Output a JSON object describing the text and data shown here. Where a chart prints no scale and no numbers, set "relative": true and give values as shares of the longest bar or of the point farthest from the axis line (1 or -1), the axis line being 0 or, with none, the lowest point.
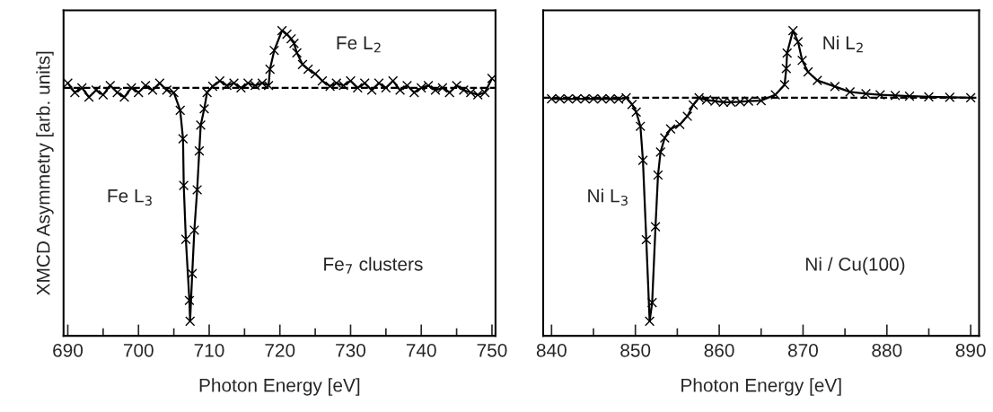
{
  "chart_data": [
    {
      "type": "line",
      "relative": true,
      "xlabel": "Photon Energy [eV]",
      "ylabel": "XMCD Asymmetry [arb. units]",
      "tick_labels": "x",
      "marker": "cross",
      "line_style": "solid",
      "grid": false,
      "legend": false,
      "xlim": [
        689.4,
        750.5
      ],
      "xticks": [
        690,
        {
          "value": 695,
          "label": null
        },
        700,
        {
          "value": 705,
          "label": null
        },
        710,
        {
          "value": 715,
          "label": null
        },
        720,
        {
          "value": 725,
          "label": null
        },
        730,
        {
          "value": 735,
          "label": null
        },
        740,
        {
          "value": 745,
          "label": null
        },
        750
      ],
      "ref_lines": [
        {
          "axis": "y",
          "value": 0,
          "label": null,
          "line_style": "dashed",
          "color": "#000000"
        }
      ],
      "annotations": [
        "Fe L$_{2}$",
        "Fe L$_{3}$",
        "Fe$_{7}$ clusters"
      ],
      "series": [
        {
          "color": "#000000",
          "x": [
            690,
            691,
            692,
            693,
            694,
            695,
            696,
            697,
            698,
            699,
            700,
            701,
            702,
            703,
            704,
            705,
            705.9,
            706.3,
            706.4,
            706.7,
            707.2,
            707.3,
            707.6,
            707.9,
            708.3,
            708.6,
            708.8,
            709.3,
            709.7,
            710.5,
            711.5,
            712.5,
            713.5,
            714.5,
            715.5,
            716.5,
            717.5,
            718.4,
            718.6,
            719.2,
            720.3,
            721.0,
            721.6,
            722.0,
            722.4,
            723.2,
            724.0,
            725.0,
            726.0,
            727.1,
            728,
            729,
            730,
            731,
            732,
            733,
            734,
            735,
            736,
            737,
            738,
            739,
            740,
            741,
            742,
            743,
            744,
            745,
            746,
            747,
            748,
            749,
            750
          ],
          "values": [
            0.02,
            -0.02,
            0.0,
            -0.04,
            -0.01,
            -0.03,
            0.01,
            -0.02,
            -0.04,
            0.0,
            -0.02,
            0.01,
            -0.01,
            0.02,
            -0.01,
            -0.02,
            -0.096,
            -0.218,
            -0.418,
            -0.649,
            -0.911,
            -1.0,
            -0.796,
            -0.61,
            -0.437,
            -0.27,
            -0.16,
            -0.09,
            -0.02,
            0.007,
            0.03,
            0.01,
            0.02,
            0.0,
            0.02,
            0.01,
            0.02,
            0.01,
            0.08,
            0.16,
            0.245,
            0.23,
            0.21,
            0.19,
            0.15,
            0.1,
            0.08,
            0.06,
            0.03,
            0.007,
            0.02,
            0.01,
            0.03,
            0.0,
            0.02,
            -0.01,
            0.02,
            0.0,
            0.03,
            -0.01,
            0.01,
            -0.02,
            0.0,
            0.01,
            -0.01,
            0.0,
            -0.02,
            0.01,
            -0.01,
            -0.02,
            -0.03,
            -0.02,
            0.04
          ]
        }
      ]
    },
    {
      "type": "line",
      "relative": true,
      "xlabel": "Photon Energy [eV]",
      "tick_labels": "x",
      "marker": "cross",
      "line_style": "solid",
      "grid": false,
      "legend": false,
      "xlim": [
        839.0,
        891.0
      ],
      "xticks": [
        840,
        {
          "value": 845,
          "label": null
        },
        850,
        {
          "value": 855,
          "label": null
        },
        860,
        {
          "value": 865,
          "label": null
        },
        870,
        {
          "value": 875,
          "label": null
        },
        880,
        {
          "value": 885,
          "label": null
        },
        890
      ],
      "ref_lines": [
        {
          "axis": "y",
          "value": 0,
          "label": null,
          "line_style": "dashed",
          "color": "#000000"
        }
      ],
      "annotations": [
        "Ni L$_{2}$",
        "Ni L$_{3}$",
        "Ni / Cu(100)"
      ],
      "series": [
        {
          "color": "#000000",
          "x": [
            840,
            841,
            842,
            843,
            844,
            845,
            846,
            847,
            848,
            848.9,
            849.6,
            850.1,
            850.6,
            850.9,
            851.3,
            851.7,
            852.0,
            852.4,
            852.7,
            853.0,
            853.5,
            854.2,
            855.3,
            856.2,
            856.9,
            857.6,
            858.5,
            859.5,
            860.5,
            861.4,
            862.5,
            863.5,
            865.0,
            866.7,
            867.8,
            868.0,
            868.1,
            868.8,
            869.4,
            869.9,
            870.6,
            871.7,
            873.8,
            875.6,
            877.5,
            879.2,
            881.0,
            882.7,
            885,
            887.5,
            890
          ],
          "values": [
            -0.005,
            -0.005,
            -0.005,
            -0.005,
            -0.005,
            -0.005,
            -0.005,
            -0.005,
            -0.006,
            0.0,
            -0.03,
            -0.064,
            -0.128,
            -0.28,
            -0.635,
            -1.0,
            -0.917,
            -0.577,
            -0.346,
            -0.243,
            -0.18,
            -0.14,
            -0.12,
            -0.083,
            -0.032,
            0.0,
            -0.01,
            -0.015,
            -0.02,
            -0.02,
            -0.018,
            -0.015,
            -0.013,
            0.013,
            0.058,
            0.13,
            0.2,
            0.3,
            0.25,
            0.167,
            0.115,
            0.077,
            0.05,
            0.026,
            0.018,
            0.013,
            0.01,
            0.007,
            0.004,
            0.002,
            0.0
          ]
        }
      ]
    }
  ]
}
